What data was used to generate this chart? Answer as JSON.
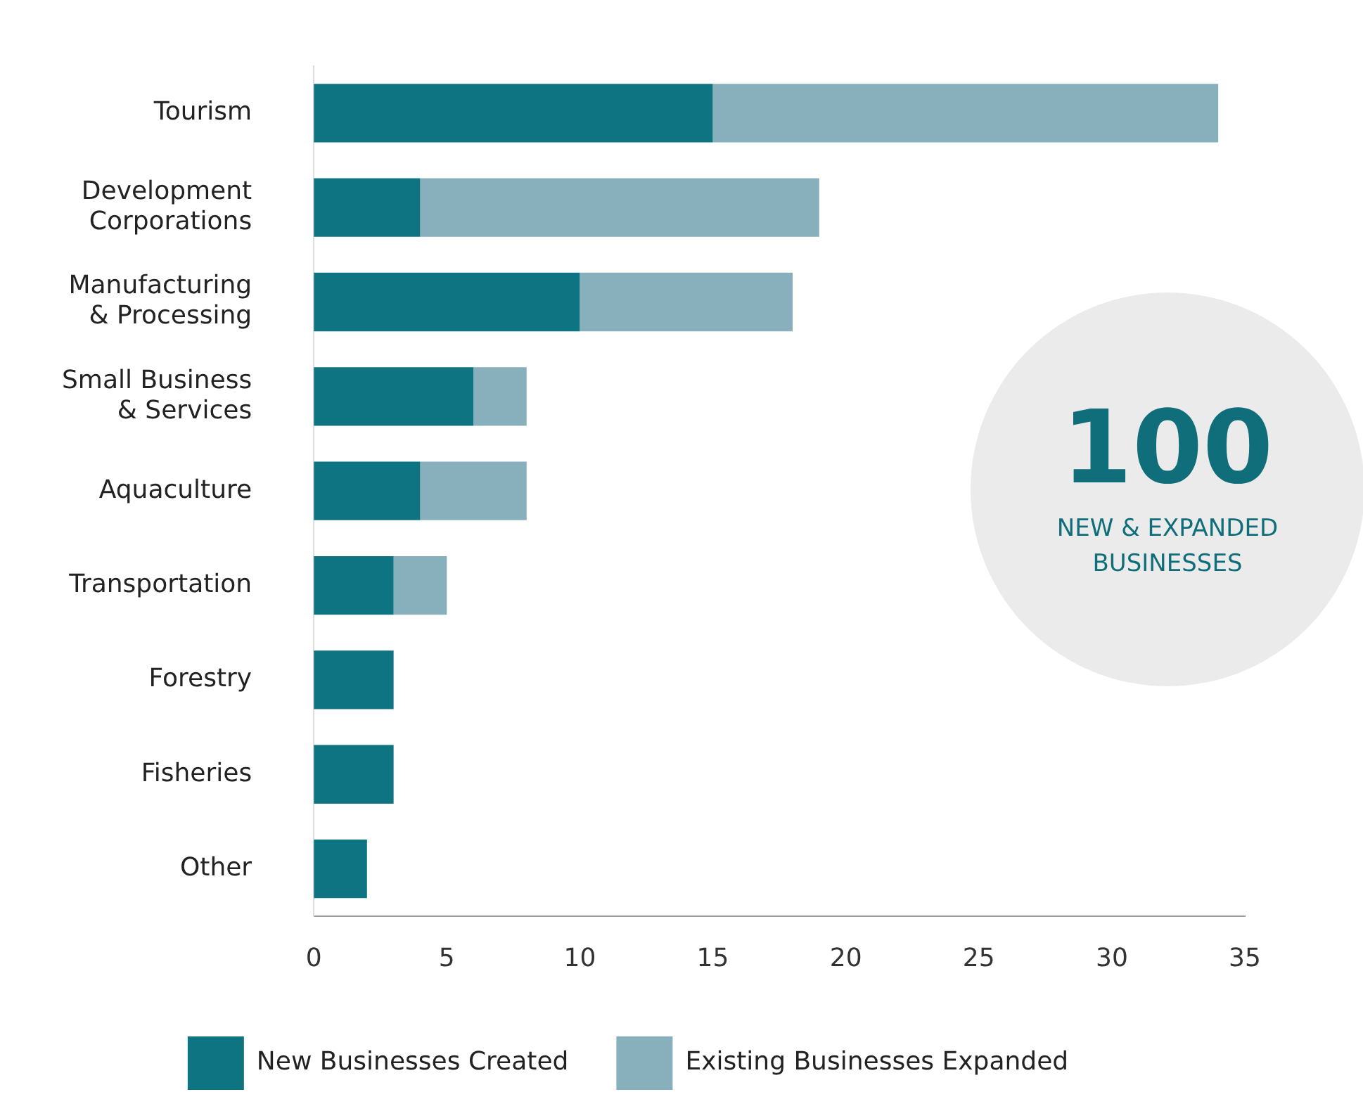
{
  "chart_data": {
    "type": "bar",
    "orientation": "horizontal",
    "stacked": true,
    "categories": [
      "Tourism",
      "Development Corporations",
      "Manufacturing & Processing",
      "Small Business & Services",
      "Aquaculture",
      "Transportation",
      "Forestry",
      "Fisheries",
      "Other"
    ],
    "series": [
      {
        "name": "New Businesses Created",
        "color": "#0f7481",
        "values": [
          15,
          4,
          10,
          6,
          4,
          3,
          3,
          3,
          2
        ]
      },
      {
        "name": "Existing Businesses Expanded",
        "color": "#88afbc",
        "values": [
          19,
          15,
          8,
          2,
          4,
          2,
          0,
          0,
          0
        ]
      }
    ],
    "xlim": [
      0,
      35
    ],
    "xticks": [
      0,
      5,
      10,
      15,
      20,
      25,
      30,
      35
    ],
    "grid": false,
    "legend": "bottom",
    "annotations": [
      "100",
      "NEW & EXPANDED BUSINESSES"
    ]
  }
}
